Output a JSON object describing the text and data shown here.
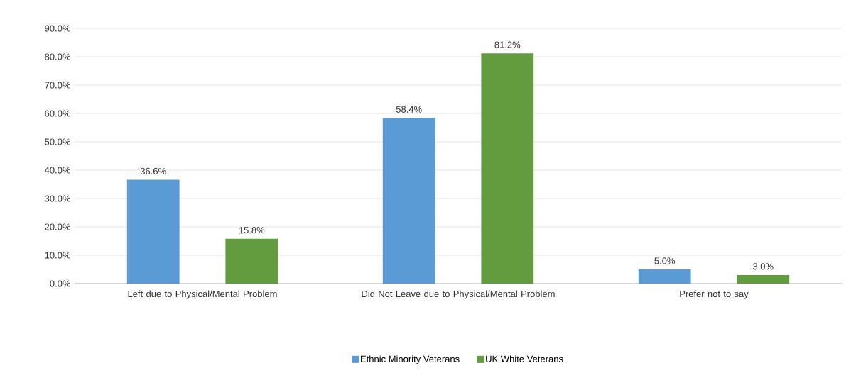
{
  "chart_data": {
    "type": "bar",
    "categories": [
      "Left due to Physical/Mental Problem",
      "Did Not Leave due to Physical/Mental Problem",
      "Prefer not to say"
    ],
    "series": [
      {
        "name": "Ethnic Minority Veterans",
        "color": "#5b9bd5",
        "values": [
          36.6,
          58.4,
          5.0
        ],
        "value_labels": [
          "36.6%",
          "58.4%",
          "5.0%"
        ]
      },
      {
        "name": "UK White Veterans",
        "color": "#629c3e",
        "values": [
          15.8,
          81.2,
          3.0
        ],
        "value_labels": [
          "15.8%",
          "81.2%",
          "3.0%"
        ]
      }
    ],
    "ylim": [
      0,
      90
    ],
    "yticks": [
      {
        "value": 0,
        "label": "0.0%"
      },
      {
        "value": 10,
        "label": "10.0%"
      },
      {
        "value": 20,
        "label": "20.0%"
      },
      {
        "value": 30,
        "label": "30.0%"
      },
      {
        "value": 40,
        "label": "40.0%"
      },
      {
        "value": 50,
        "label": "50.0%"
      },
      {
        "value": 60,
        "label": "60.0%"
      },
      {
        "value": 70,
        "label": "70.0%"
      },
      {
        "value": 80,
        "label": "80.0%"
      },
      {
        "value": 90,
        "label": "90.0%"
      }
    ],
    "grid": "y",
    "legend": "bottom"
  }
}
